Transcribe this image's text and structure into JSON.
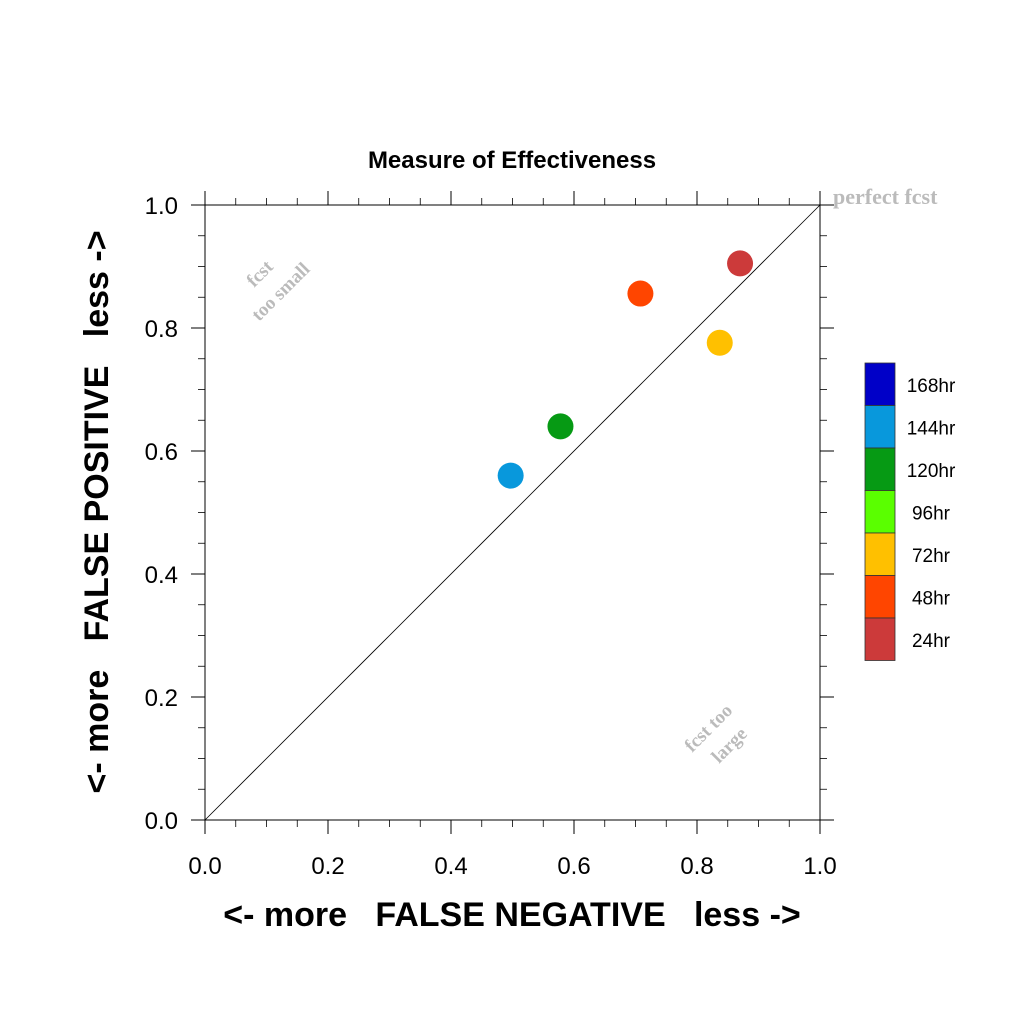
{
  "chart_data": {
    "type": "scatter",
    "title": "Measure of Effectiveness",
    "xlabel": "<- more   FALSE NEGATIVE   less ->",
    "ylabel": "<- more   FALSE POSITIVE   less ->",
    "xlim": [
      0.0,
      1.0
    ],
    "ylim": [
      0.0,
      1.0
    ],
    "xticks": [
      "0.0",
      "0.2",
      "0.4",
      "0.6",
      "0.8",
      "1.0"
    ],
    "yticks": [
      "0.0",
      "0.2",
      "0.4",
      "0.6",
      "0.8",
      "1.0"
    ],
    "grid": false,
    "reference_line": {
      "from": [
        0,
        0
      ],
      "to": [
        1,
        1
      ]
    },
    "annotations": {
      "perfect": "perfect fcst",
      "too_small_line1": "fcst",
      "too_small_line2": "too small",
      "too_large_line1": "fcst too",
      "too_large_line2": "large"
    },
    "points": [
      {
        "name": "144hr",
        "x": 0.497,
        "y": 0.56,
        "color": "#0898dc"
      },
      {
        "name": "120hr",
        "x": 0.578,
        "y": 0.64,
        "color": "#069a14"
      },
      {
        "name": "48hr",
        "x": 0.708,
        "y": 0.856,
        "color": "#ff4500"
      },
      {
        "name": "72hr",
        "x": 0.837,
        "y": 0.776,
        "color": "#ffc000"
      },
      {
        "name": "24hr",
        "x": 0.87,
        "y": 0.905,
        "color": "#cc3a3a"
      }
    ],
    "legend": {
      "placement": "right",
      "entries": [
        {
          "label": "168hr",
          "color": "#0000c8"
        },
        {
          "label": "144hr",
          "color": "#0898dc"
        },
        {
          "label": "120hr",
          "color": "#069a14"
        },
        {
          "label": "96hr",
          "color": "#5aff00"
        },
        {
          "label": "72hr",
          "color": "#ffc000"
        },
        {
          "label": "48hr",
          "color": "#ff4500"
        },
        {
          "label": "24hr",
          "color": "#cc3a3a"
        }
      ]
    }
  }
}
